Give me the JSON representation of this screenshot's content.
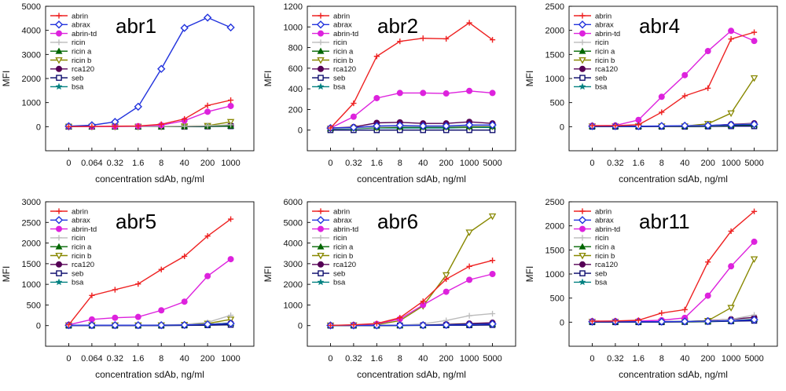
{
  "figure": {
    "legend": [
      {
        "key": "abrin",
        "label": "abrin",
        "color": "#ee2222",
        "marker": "plus-diamond"
      },
      {
        "key": "abrax",
        "label": "abrax",
        "color": "#2233dd",
        "marker": "open-diamond"
      },
      {
        "key": "abrin_td",
        "label": "abrin-td",
        "color": "#dd22dd",
        "marker": "filled-circle"
      },
      {
        "key": "ricin",
        "label": "ricin",
        "color": "#bbbbbb",
        "marker": "plus"
      },
      {
        "key": "ricin_a",
        "label": "ricin a",
        "color": "#006600",
        "marker": "filled-triangle"
      },
      {
        "key": "ricin_b",
        "label": "ricin b",
        "color": "#888800",
        "marker": "open-triangle-down"
      },
      {
        "key": "rca120",
        "label": "rca120",
        "color": "#550055",
        "marker": "filled-circle"
      },
      {
        "key": "seb",
        "label": "seb",
        "color": "#000066",
        "marker": "open-square"
      },
      {
        "key": "bsa",
        "label": "bsa",
        "color": "#008080",
        "marker": "star"
      }
    ]
  },
  "chart_data": [
    {
      "type": "line",
      "title": "abr1",
      "xlabel": "concentration sdAb, ng/ml",
      "ylabel": "MFI",
      "ylim": [
        -1000,
        5000
      ],
      "yticks": [
        0,
        1000,
        2000,
        3000,
        4000,
        5000
      ],
      "categories": [
        "0",
        "0.064",
        "0.32",
        "1.6",
        "8",
        "40",
        "200",
        "1000"
      ],
      "series": [
        {
          "name": "abrin",
          "values": [
            0,
            10,
            20,
            30,
            100,
            320,
            880,
            1100
          ]
        },
        {
          "name": "abrax",
          "values": [
            20,
            60,
            200,
            830,
            2400,
            4100,
            4530,
            4120
          ]
        },
        {
          "name": "abrin-td",
          "values": [
            0,
            5,
            10,
            20,
            60,
            250,
            620,
            860
          ]
        },
        {
          "name": "ricin",
          "values": [
            0,
            0,
            0,
            0,
            10,
            20,
            40,
            80
          ]
        },
        {
          "name": "ricin a",
          "values": [
            0,
            0,
            0,
            0,
            0,
            10,
            20,
            30
          ]
        },
        {
          "name": "ricin b",
          "values": [
            0,
            0,
            0,
            0,
            10,
            20,
            40,
            200
          ]
        },
        {
          "name": "rca120",
          "values": [
            0,
            0,
            0,
            0,
            0,
            10,
            20,
            40
          ]
        },
        {
          "name": "seb",
          "values": [
            0,
            0,
            0,
            0,
            0,
            0,
            10,
            20
          ]
        },
        {
          "name": "bsa",
          "values": [
            0,
            0,
            0,
            0,
            0,
            0,
            10,
            20
          ]
        }
      ]
    },
    {
      "type": "line",
      "title": "abr2",
      "xlabel": "concentration sdAb, ng/ml",
      "ylabel": "MFI",
      "ylim": [
        -200,
        1200
      ],
      "yticks": [
        0,
        200,
        400,
        600,
        800,
        1000,
        1200
      ],
      "categories": [
        "0",
        "0.32",
        "1.6",
        "8",
        "40",
        "200",
        "1000",
        "5000"
      ],
      "series": [
        {
          "name": "abrin",
          "values": [
            20,
            260,
            715,
            860,
            890,
            885,
            1040,
            875
          ]
        },
        {
          "name": "abrax",
          "values": [
            20,
            25,
            40,
            45,
            40,
            40,
            50,
            50
          ]
        },
        {
          "name": "abrin-td",
          "values": [
            20,
            130,
            310,
            360,
            360,
            355,
            380,
            360
          ]
        },
        {
          "name": "ricin",
          "values": [
            15,
            20,
            30,
            35,
            35,
            35,
            40,
            40
          ]
        },
        {
          "name": "ricin a",
          "values": [
            15,
            20,
            25,
            30,
            30,
            30,
            35,
            35
          ]
        },
        {
          "name": "ricin b",
          "values": [
            15,
            20,
            25,
            30,
            30,
            30,
            30,
            35
          ]
        },
        {
          "name": "rca120",
          "values": [
            20,
            30,
            70,
            75,
            65,
            65,
            80,
            65
          ]
        },
        {
          "name": "seb",
          "values": [
            0,
            0,
            0,
            0,
            0,
            0,
            0,
            0
          ]
        },
        {
          "name": "bsa",
          "values": [
            10,
            15,
            20,
            20,
            20,
            20,
            25,
            25
          ]
        }
      ]
    },
    {
      "type": "line",
      "title": "abr4",
      "xlabel": "concentration sdAb, ng/ml",
      "ylabel": "MFI",
      "ylim": [
        -500,
        2500
      ],
      "yticks": [
        0,
        500,
        1000,
        1500,
        2000,
        2500
      ],
      "categories": [
        "0",
        "0.32",
        "1.6",
        "8",
        "40",
        "200",
        "1000",
        "5000"
      ],
      "series": [
        {
          "name": "abrin",
          "values": [
            20,
            20,
            40,
            300,
            640,
            800,
            1820,
            1960
          ]
        },
        {
          "name": "abrax",
          "values": [
            10,
            10,
            10,
            15,
            20,
            25,
            40,
            50
          ]
        },
        {
          "name": "abrin-td",
          "values": [
            20,
            25,
            140,
            620,
            1070,
            1570,
            1990,
            1780
          ]
        },
        {
          "name": "ricin",
          "values": [
            10,
            10,
            10,
            10,
            15,
            20,
            40,
            60
          ]
        },
        {
          "name": "ricin a",
          "values": [
            10,
            10,
            10,
            10,
            10,
            15,
            30,
            40
          ]
        },
        {
          "name": "ricin b",
          "values": [
            10,
            10,
            10,
            10,
            10,
            60,
            280,
            1010
          ]
        },
        {
          "name": "rca120",
          "values": [
            10,
            10,
            10,
            10,
            15,
            20,
            50,
            70
          ]
        },
        {
          "name": "seb",
          "values": [
            0,
            0,
            0,
            0,
            0,
            5,
            10,
            10
          ]
        },
        {
          "name": "bsa",
          "values": [
            10,
            10,
            10,
            10,
            10,
            15,
            20,
            30
          ]
        }
      ]
    },
    {
      "type": "line",
      "title": "abr5",
      "xlabel": "concentration sdAb, ng/ml",
      "ylabel": "MFI",
      "ylim": [
        -500,
        3000
      ],
      "yticks": [
        0,
        500,
        1000,
        1500,
        2000,
        2500,
        3000
      ],
      "categories": [
        "0",
        "0.064",
        "0.32",
        "1.6",
        "8",
        "40",
        "200",
        "1000"
      ],
      "series": [
        {
          "name": "abrin",
          "values": [
            20,
            730,
            870,
            1010,
            1360,
            1680,
            2170,
            2580
          ]
        },
        {
          "name": "abrax",
          "values": [
            10,
            10,
            10,
            10,
            10,
            15,
            30,
            50
          ]
        },
        {
          "name": "abrin-td",
          "values": [
            20,
            150,
            190,
            210,
            370,
            580,
            1200,
            1610
          ]
        },
        {
          "name": "ricin",
          "values": [
            10,
            10,
            10,
            10,
            15,
            30,
            80,
            250
          ]
        },
        {
          "name": "ricin a",
          "values": [
            10,
            10,
            10,
            10,
            10,
            15,
            30,
            60
          ]
        },
        {
          "name": "ricin b",
          "values": [
            10,
            10,
            10,
            10,
            10,
            20,
            50,
            150
          ]
        },
        {
          "name": "rca120",
          "values": [
            10,
            10,
            10,
            10,
            10,
            15,
            30,
            60
          ]
        },
        {
          "name": "seb",
          "values": [
            0,
            0,
            0,
            0,
            0,
            5,
            10,
            20
          ]
        },
        {
          "name": "bsa",
          "values": [
            10,
            10,
            10,
            10,
            10,
            10,
            20,
            30
          ]
        }
      ]
    },
    {
      "type": "line",
      "title": "abr6",
      "xlabel": "concentration sdAb, ng/ml",
      "ylabel": "MFI",
      "ylim": [
        -1000,
        6000
      ],
      "yticks": [
        0,
        1000,
        2000,
        3000,
        4000,
        5000,
        6000
      ],
      "categories": [
        "0",
        "0.32",
        "1.6",
        "8",
        "40",
        "200",
        "1000",
        "5000"
      ],
      "series": [
        {
          "name": "abrin",
          "values": [
            10,
            40,
            100,
            380,
            1180,
            2250,
            2870,
            3160
          ]
        },
        {
          "name": "abrax",
          "values": [
            10,
            10,
            10,
            15,
            20,
            30,
            50,
            80
          ]
        },
        {
          "name": "abrin-td",
          "values": [
            10,
            30,
            80,
            320,
            1000,
            1640,
            2220,
            2500
          ]
        },
        {
          "name": "ricin",
          "values": [
            10,
            10,
            15,
            20,
            80,
            250,
            480,
            580
          ]
        },
        {
          "name": "ricin a",
          "values": [
            10,
            10,
            10,
            10,
            20,
            40,
            60,
            80
          ]
        },
        {
          "name": "ricin b",
          "values": [
            10,
            20,
            50,
            240,
            950,
            2450,
            4520,
            5300
          ]
        },
        {
          "name": "rca120",
          "values": [
            10,
            10,
            10,
            15,
            30,
            60,
            100,
            140
          ]
        },
        {
          "name": "seb",
          "values": [
            0,
            0,
            0,
            5,
            10,
            15,
            20,
            30
          ]
        },
        {
          "name": "bsa",
          "values": [
            10,
            10,
            10,
            10,
            15,
            20,
            30,
            40
          ]
        }
      ]
    },
    {
      "type": "line",
      "title": "abr11",
      "xlabel": "concentration sdAb, ng/ml",
      "ylabel": "MFI",
      "ylim": [
        -500,
        2500
      ],
      "yticks": [
        0,
        500,
        1000,
        1500,
        2000,
        2500
      ],
      "categories": [
        "0",
        "0.32",
        "1.6",
        "8",
        "40",
        "200",
        "1000",
        "5000"
      ],
      "series": [
        {
          "name": "abrin",
          "values": [
            20,
            25,
            40,
            190,
            260,
            1250,
            1890,
            2300
          ]
        },
        {
          "name": "abrax",
          "values": [
            10,
            10,
            10,
            10,
            15,
            20,
            30,
            50
          ]
        },
        {
          "name": "abrin-td",
          "values": [
            20,
            20,
            25,
            40,
            90,
            550,
            1160,
            1670
          ]
        },
        {
          "name": "ricin",
          "values": [
            10,
            10,
            10,
            10,
            15,
            20,
            60,
            150
          ]
        },
        {
          "name": "ricin a",
          "values": [
            10,
            10,
            10,
            10,
            10,
            15,
            30,
            60
          ]
        },
        {
          "name": "ricin b",
          "values": [
            10,
            10,
            10,
            10,
            15,
            30,
            300,
            1310
          ]
        },
        {
          "name": "rca120",
          "values": [
            10,
            10,
            10,
            10,
            15,
            30,
            60,
            100
          ]
        },
        {
          "name": "seb",
          "values": [
            0,
            0,
            0,
            0,
            5,
            10,
            20,
            30
          ]
        },
        {
          "name": "bsa",
          "values": [
            10,
            10,
            10,
            10,
            10,
            15,
            25,
            40
          ]
        }
      ]
    }
  ]
}
